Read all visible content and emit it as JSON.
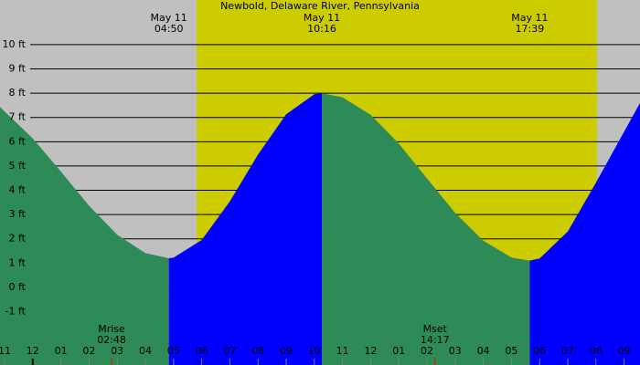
{
  "chart_data": {
    "type": "area",
    "title": "Newbold, Delaware River, Pennsylvania",
    "categories": [
      "11",
      "12",
      "01",
      "02",
      "03",
      "04",
      "05",
      "06",
      "07",
      "08",
      "09",
      "10",
      "11",
      "12",
      "01",
      "02",
      "03",
      "04",
      "05",
      "06",
      "07",
      "08",
      "09"
    ],
    "values": [
      7.25,
      6.14,
      4.77,
      3.36,
      2.17,
      1.41,
      1.22,
      1.95,
      3.54,
      5.47,
      7.13,
      7.96,
      7.83,
      7.11,
      5.92,
      4.49,
      3.07,
      1.92,
      1.23,
      1.19,
      2.3,
      4.31,
      6.41
    ],
    "ylim": [
      -3.2,
      11.84
    ],
    "yticks": [
      {
        "value": -1,
        "label": "-1 ft"
      },
      {
        "value": 0,
        "label": "0 ft"
      },
      {
        "value": 1,
        "label": "1 ft"
      },
      {
        "value": 2,
        "label": "2 ft"
      },
      {
        "value": 3,
        "label": "3 ft"
      },
      {
        "value": 4,
        "label": "4 ft"
      },
      {
        "value": 5,
        "label": "5 ft"
      },
      {
        "value": 6,
        "label": "6 ft"
      },
      {
        "value": 7,
        "label": "7 ft"
      },
      {
        "value": 8,
        "label": "8 ft"
      },
      {
        "value": 9,
        "label": "9 ft"
      },
      {
        "value": 10,
        "label": "10 ft"
      }
    ],
    "grid": true,
    "events": [
      {
        "date": "May 11",
        "time": "04:50",
        "height": 1.2
      },
      {
        "date": "May 11",
        "time": "10:16",
        "height": 8.0
      },
      {
        "date": "May 11",
        "time": "17:39",
        "height": 1.1
      }
    ],
    "moon": [
      {
        "label": "Mrise",
        "time": "02:48"
      },
      {
        "label": "Mset",
        "time": "14:17"
      }
    ],
    "rising_color": "#0000ff",
    "falling_color": "#2e8b57"
  }
}
